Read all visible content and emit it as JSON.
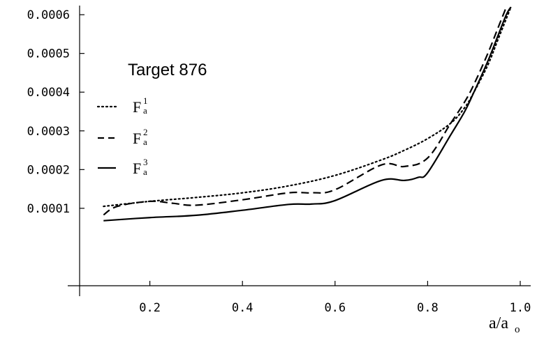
{
  "chart_data": {
    "type": "line",
    "title": "Target 876",
    "xlabel": {
      "main": "a/a",
      "subscript": "o"
    },
    "ylabel": "",
    "xlim": [
      0.0,
      1.0
    ],
    "ylim": [
      -0.0001,
      0.00062
    ],
    "x_ticks": [
      0.2,
      0.4,
      0.6,
      0.8,
      1.0
    ],
    "x_tick_labels": [
      "0.2",
      "0.4",
      "0.6",
      "0.8",
      "1.0"
    ],
    "y_ticks": [
      0.0001,
      0.0002,
      0.0003,
      0.0004,
      0.0005,
      0.0006
    ],
    "y_tick_labels": [
      "0.0001",
      "0.0002",
      "0.0003",
      "0.0004",
      "0.0005",
      "0.0006"
    ],
    "grid": false,
    "legend_position": "left",
    "series": [
      {
        "name": "F",
        "sup": "1",
        "sub": "a",
        "style": "dotted",
        "x": [
          0.1,
          0.2,
          0.3,
          0.4,
          0.5,
          0.6,
          0.7,
          0.75,
          0.8,
          0.85,
          0.88,
          0.9,
          0.93,
          0.95,
          0.97,
          0.98
        ],
        "y": [
          0.000105,
          0.000118,
          0.000128,
          0.00014,
          0.000158,
          0.000185,
          0.000225,
          0.00025,
          0.00028,
          0.00032,
          0.00036,
          0.0004,
          0.00047,
          0.00053,
          0.00059,
          0.00062
        ]
      },
      {
        "name": "F",
        "sup": "2",
        "sub": "a",
        "style": "dashed",
        "x": [
          0.1,
          0.13,
          0.2,
          0.25,
          0.3,
          0.4,
          0.5,
          0.55,
          0.6,
          0.7,
          0.75,
          0.8,
          0.85,
          0.88,
          0.9,
          0.93,
          0.95,
          0.97
        ],
        "y": [
          8.3e-05,
          0.000105,
          0.000118,
          0.000113,
          0.000108,
          0.000122,
          0.00014,
          0.00014,
          0.000148,
          0.000212,
          0.000208,
          0.00023,
          0.00032,
          0.000375,
          0.00042,
          0.0005,
          0.00056,
          0.00062
        ]
      },
      {
        "name": "F",
        "sup": "3",
        "sub": "a",
        "style": "solid",
        "x": [
          0.1,
          0.2,
          0.3,
          0.4,
          0.5,
          0.55,
          0.6,
          0.7,
          0.75,
          0.78,
          0.8,
          0.85,
          0.88,
          0.9,
          0.93,
          0.95,
          0.97,
          0.98
        ],
        "y": [
          6.8e-05,
          7.6e-05,
          8.2e-05,
          9.5e-05,
          0.00011,
          0.000111,
          0.00012,
          0.000172,
          0.000172,
          0.00018,
          0.000192,
          0.00029,
          0.00035,
          0.0004,
          0.00048,
          0.00054,
          0.0006,
          0.00062
        ]
      }
    ]
  }
}
